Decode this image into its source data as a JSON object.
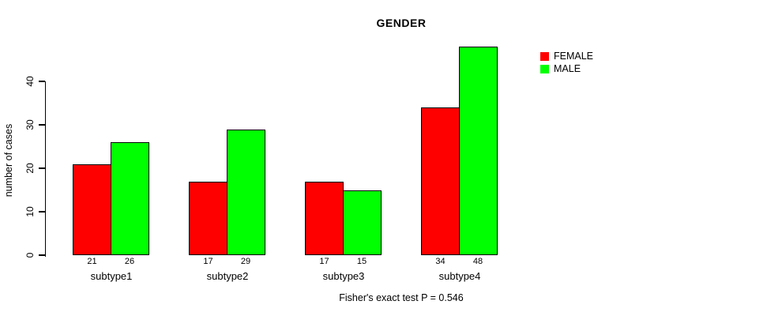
{
  "chart_data": {
    "type": "bar",
    "title": "GENDER",
    "xlabel": "",
    "ylabel": "number of cases",
    "categories": [
      "subtype1",
      "subtype2",
      "subtype3",
      "subtype4"
    ],
    "series": [
      {
        "name": "FEMALE",
        "color": "#ff0000",
        "values": [
          21,
          17,
          17,
          34
        ]
      },
      {
        "name": "MALE",
        "color": "#00ff00",
        "values": [
          26,
          29,
          15,
          48
        ]
      }
    ],
    "value_labels_shown": true,
    "y_ticks": [
      0,
      10,
      20,
      30,
      40
    ],
    "ylim": [
      0,
      40
    ],
    "grid": false,
    "legend_position": "top-right",
    "caption": "Fisher's exact test P = 0.546"
  },
  "colors": {
    "female": "#ff0000",
    "male": "#00ff00",
    "axis": "#000000",
    "background": "#ffffff"
  }
}
